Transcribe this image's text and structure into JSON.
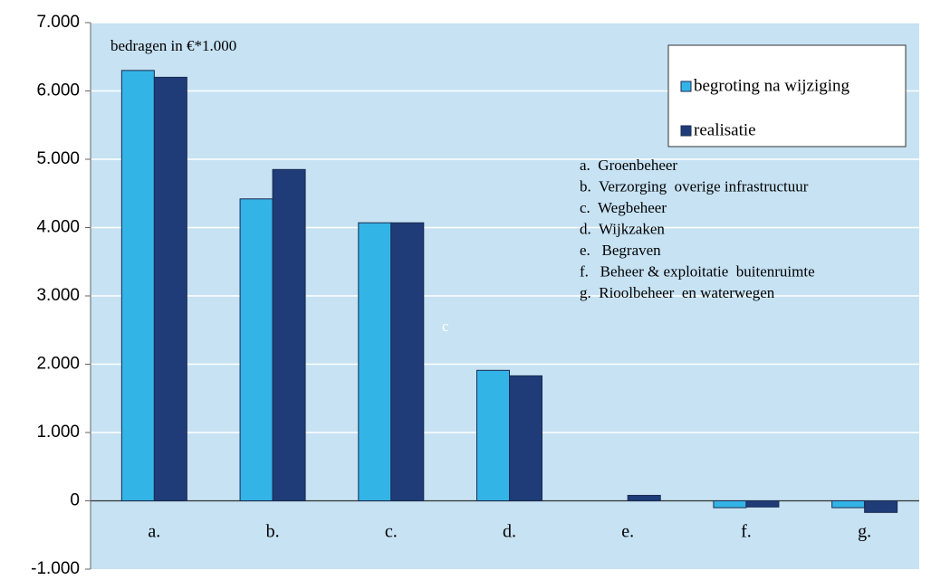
{
  "chart_data": {
    "type": "bar",
    "categories": [
      "a.",
      "b.",
      "c.",
      "d.",
      "e.",
      "f.",
      "g."
    ],
    "series": [
      {
        "name": "begroting na wijziging",
        "color": "#33b4e6",
        "values": [
          6300,
          4420,
          4070,
          1910,
          0,
          -100,
          -100
        ]
      },
      {
        "name": "realisatie",
        "color": "#1f3c78",
        "values": [
          6200,
          4850,
          4070,
          1830,
          80,
          -90,
          -170
        ]
      }
    ],
    "ylim": [
      -1000,
      7000
    ],
    "yticks": [
      {
        "value": -1000,
        "label": "-1.000"
      },
      0,
      {
        "value": 1000,
        "label": "1.000"
      },
      {
        "value": 2000,
        "label": "2.000"
      },
      {
        "value": 3000,
        "label": "3.000"
      },
      {
        "value": 4000,
        "label": "4.000"
      },
      {
        "value": 5000,
        "label": "5.000"
      },
      {
        "value": 6000,
        "label": "6.000"
      },
      {
        "value": 7000,
        "label": "7.000"
      }
    ],
    "grid": true,
    "annotation": "bedragen in €*1.000",
    "stray_label": "c",
    "category_descriptions": [
      "a.  Groenbeheer",
      "b.  Verzorging  overige infrastructuur",
      "c.  Wegbeheer",
      "d.  Wijkzaken",
      "e.   Begraven",
      "f.   Beheer & exploitatie  buitenruimte",
      "g.  Rioolbeheer  en waterwegen"
    ]
  }
}
